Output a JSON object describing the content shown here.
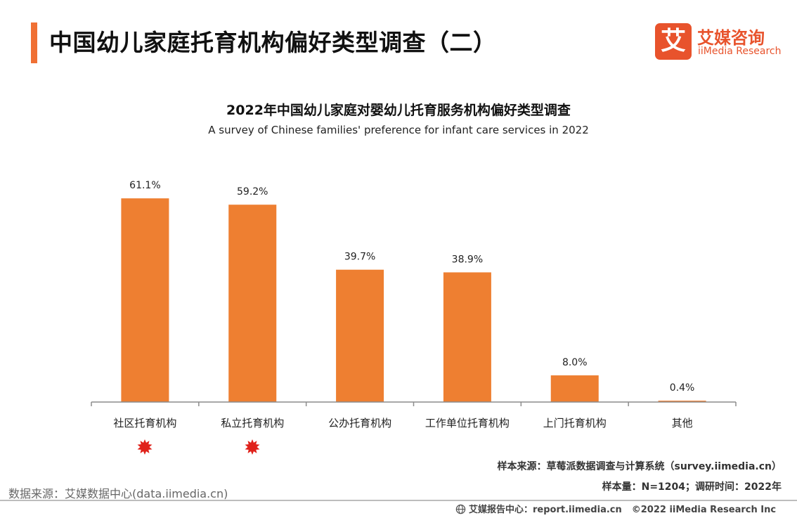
{
  "header": {
    "title": "中国幼儿家庭托育机构偏好类型调查（二）",
    "accent_color": "#f07034"
  },
  "logo": {
    "mark": "艾",
    "name_cn": "艾媒咨询",
    "name_en": "iiMedia Research",
    "color": "#e8532c"
  },
  "chart_data": {
    "type": "bar",
    "title": "2022年中国幼儿家庭对婴幼儿托育服务机构偏好类型调查",
    "subtitle": "A survey of Chinese families' preference for infant care services in 2022",
    "categories": [
      "社区托育机构",
      "私立托育机构",
      "公办托育机构",
      "工作单位托育机构",
      "上门托育机构",
      "其他"
    ],
    "values": [
      61.1,
      59.2,
      39.7,
      38.9,
      8.0,
      0.4
    ],
    "value_labels": [
      "61.1%",
      "59.2%",
      "39.7%",
      "38.9%",
      "8.0%",
      "0.4%"
    ],
    "ylim": [
      0,
      70
    ],
    "grid": false,
    "bar_color": "#ee7f31",
    "highlighted_categories": [
      0,
      1
    ],
    "highlight_marker": "red-star-icon",
    "highlight_color": "#e0221b"
  },
  "notes": {
    "sample_source": "样本来源：草莓派数据调查与计算系统（survey.iimedia.cn）",
    "sample_size": "样本量：N=1204；调研时间：2022年",
    "data_source": "数据来源：艾媒数据中心(data.iimedia.cn)"
  },
  "footer": {
    "report_center": "艾媒报告中心：report.iimedia.cn",
    "copyright": "©2022  iiMedia Research  Inc"
  }
}
